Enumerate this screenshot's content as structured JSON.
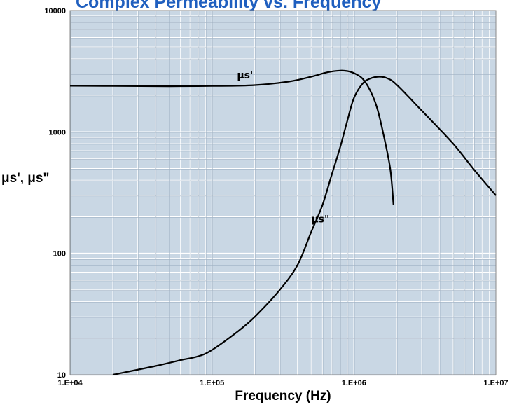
{
  "chart_data": {
    "type": "line",
    "title": "Complex Permeability vs. Frequency",
    "xlabel": "Frequency (Hz)",
    "ylabel": "μs', μs\"",
    "xscale": "log",
    "yscale": "log",
    "xlim": [
      10000,
      10000000
    ],
    "ylim": [
      10,
      10000
    ],
    "grid": true,
    "xticks": [
      "1.E+04",
      "1.E+05",
      "1.E+06",
      "1.E+07"
    ],
    "yticks": [
      "10",
      "100",
      "1000",
      "10000"
    ],
    "colors": {
      "background": "#c9d7e4",
      "grid": "#ffffff",
      "line": "#000000",
      "title": "#1f5fbf"
    },
    "series": [
      {
        "name": "μs'",
        "x": [
          10000,
          20000,
          50000,
          100000,
          200000,
          350000,
          500000,
          650000,
          800000,
          900000,
          1000000,
          1150000,
          1300000,
          1450000,
          1600000,
          1800000,
          1900000
        ],
        "y": [
          2400,
          2390,
          2380,
          2390,
          2430,
          2600,
          2850,
          3100,
          3200,
          3170,
          3050,
          2750,
          2200,
          1600,
          1000,
          500,
          250
        ]
      },
      {
        "name": "μs\"",
        "x": [
          20000,
          40000,
          60000,
          80000,
          100000,
          150000,
          200000,
          300000,
          400000,
          500000,
          600000,
          700000,
          800000,
          900000,
          1000000,
          1150000,
          1300000,
          1500000,
          1700000,
          2000000,
          3000000,
          5000000,
          7000000,
          10000000
        ],
        "y": [
          10,
          11.8,
          13.2,
          14.2,
          16,
          22.5,
          30,
          50,
          80,
          150,
          250,
          450,
          750,
          1250,
          1900,
          2500,
          2750,
          2850,
          2780,
          2450,
          1500,
          800,
          490,
          300
        ]
      }
    ],
    "annotations": [
      {
        "text": "μs'",
        "x": 150000,
        "y": 2750
      },
      {
        "text": "μs\"",
        "x": 500000,
        "y": 180
      }
    ]
  }
}
